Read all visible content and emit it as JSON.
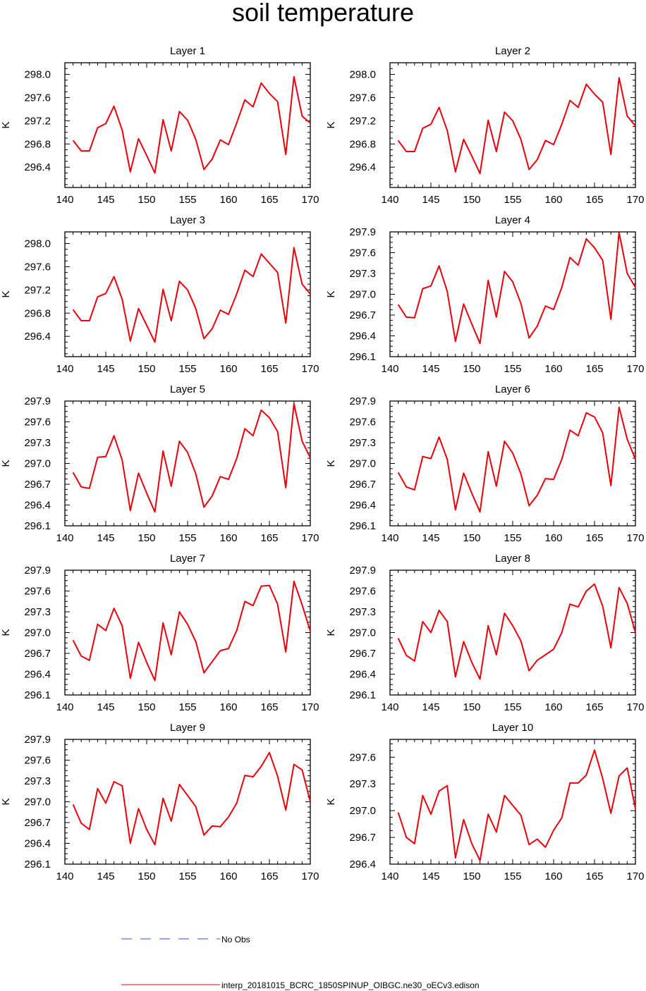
{
  "title": "soil temperature",
  "legend": {
    "obs_label": "No Obs",
    "model_label": "interp_20181015_BCRC_1850SPINUP_OIBGC.ne30_oECv3.edison",
    "obs_color": "#3050e8",
    "model_color": "#e8000b"
  },
  "chart_data": [
    {
      "type": "line",
      "title": "Layer 1",
      "ylabel": "K",
      "xlim": [
        140,
        170
      ],
      "ylim": [
        296.05,
        298.2
      ],
      "xticks": [
        140,
        145,
        150,
        155,
        160,
        165,
        170
      ],
      "yticks": [
        296.4,
        296.8,
        297.2,
        297.6,
        298.0
      ],
      "ytick_labels": [
        "296.4",
        "296.8",
        "297.2",
        "297.6",
        "298.0"
      ],
      "x": [
        141,
        142,
        143,
        144,
        145,
        146,
        147,
        148,
        149,
        150,
        151,
        152,
        153,
        154,
        155,
        156,
        157,
        158,
        159,
        160,
        161,
        162,
        163,
        164,
        165,
        166,
        167,
        168,
        169,
        170
      ],
      "values": [
        296.86,
        296.68,
        296.68,
        297.08,
        297.15,
        297.45,
        297.04,
        296.32,
        296.89,
        296.6,
        296.3,
        297.22,
        296.68,
        297.36,
        297.21,
        296.88,
        296.36,
        296.54,
        296.87,
        296.79,
        297.16,
        297.56,
        297.44,
        297.85,
        297.67,
        297.53,
        296.62,
        297.96,
        297.28,
        297.16
      ]
    },
    {
      "type": "line",
      "title": "Layer 2",
      "ylabel": "K",
      "xlim": [
        140,
        170
      ],
      "ylim": [
        296.05,
        298.2
      ],
      "xticks": [
        140,
        145,
        150,
        155,
        160,
        165,
        170
      ],
      "yticks": [
        296.4,
        296.8,
        297.2,
        297.6,
        298.0
      ],
      "ytick_labels": [
        "296.4",
        "296.8",
        "297.2",
        "297.6",
        "298.0"
      ],
      "x": [
        141,
        142,
        143,
        144,
        145,
        146,
        147,
        148,
        149,
        150,
        151,
        152,
        153,
        154,
        155,
        156,
        157,
        158,
        159,
        160,
        161,
        162,
        163,
        164,
        165,
        166,
        167,
        168,
        169,
        170
      ],
      "values": [
        296.86,
        296.67,
        296.67,
        297.07,
        297.14,
        297.43,
        297.03,
        296.32,
        296.88,
        296.59,
        296.29,
        297.21,
        296.67,
        297.35,
        297.2,
        296.88,
        296.36,
        296.53,
        296.86,
        296.79,
        297.14,
        297.55,
        297.43,
        297.83,
        297.66,
        297.52,
        296.62,
        297.94,
        297.28,
        297.11
      ]
    },
    {
      "type": "line",
      "title": "Layer 3",
      "ylabel": "K",
      "xlim": [
        140,
        170
      ],
      "ylim": [
        296.05,
        298.2
      ],
      "xticks": [
        140,
        145,
        150,
        155,
        160,
        165,
        170
      ],
      "yticks": [
        296.4,
        296.8,
        297.2,
        297.6,
        298.0
      ],
      "ytick_labels": [
        "296.4",
        "296.8",
        "297.2",
        "297.6",
        "298.0"
      ],
      "x": [
        141,
        142,
        143,
        144,
        145,
        146,
        147,
        148,
        149,
        150,
        151,
        152,
        153,
        154,
        155,
        156,
        157,
        158,
        159,
        160,
        161,
        162,
        163,
        164,
        165,
        166,
        167,
        168,
        169,
        170
      ],
      "values": [
        296.86,
        296.67,
        296.67,
        297.08,
        297.14,
        297.43,
        297.04,
        296.32,
        296.88,
        296.59,
        296.3,
        297.21,
        296.67,
        297.35,
        297.2,
        296.88,
        296.36,
        296.53,
        296.85,
        296.78,
        297.13,
        297.54,
        297.43,
        297.82,
        297.66,
        297.5,
        296.63,
        297.93,
        297.3,
        297.13
      ]
    },
    {
      "type": "line",
      "title": "Layer 4",
      "ylabel": "K",
      "xlim": [
        140,
        170
      ],
      "ylim": [
        296.1,
        297.9
      ],
      "xticks": [
        140,
        145,
        150,
        155,
        160,
        165,
        170
      ],
      "yticks": [
        296.1,
        296.4,
        296.7,
        297.0,
        297.3,
        297.6,
        297.9
      ],
      "ytick_labels": [
        "296.1",
        "296.4",
        "296.7",
        "297.0",
        "297.3",
        "297.6",
        "297.9"
      ],
      "x": [
        141,
        142,
        143,
        144,
        145,
        146,
        147,
        148,
        149,
        150,
        151,
        152,
        153,
        154,
        155,
        156,
        157,
        158,
        159,
        160,
        161,
        162,
        163,
        164,
        165,
        166,
        167,
        168,
        169,
        170
      ],
      "values": [
        296.85,
        296.67,
        296.66,
        297.08,
        297.12,
        297.41,
        297.04,
        296.32,
        296.86,
        296.57,
        296.29,
        297.2,
        296.67,
        297.33,
        297.18,
        296.87,
        296.37,
        296.54,
        296.83,
        296.78,
        297.1,
        297.53,
        297.42,
        297.8,
        297.67,
        297.49,
        296.64,
        297.89,
        297.3,
        297.1
      ]
    },
    {
      "type": "line",
      "title": "Layer 5",
      "ylabel": "K",
      "xlim": [
        140,
        170
      ],
      "ylim": [
        296.1,
        297.9
      ],
      "xticks": [
        140,
        145,
        150,
        155,
        160,
        165,
        170
      ],
      "yticks": [
        296.1,
        296.4,
        296.7,
        297.0,
        297.3,
        297.6,
        297.9
      ],
      "ytick_labels": [
        "296.1",
        "296.4",
        "296.7",
        "297.0",
        "297.3",
        "297.6",
        "297.9"
      ],
      "x": [
        141,
        142,
        143,
        144,
        145,
        146,
        147,
        148,
        149,
        150,
        151,
        152,
        153,
        154,
        155,
        156,
        157,
        158,
        159,
        160,
        161,
        162,
        163,
        164,
        165,
        166,
        167,
        168,
        169,
        170
      ],
      "values": [
        296.87,
        296.66,
        296.64,
        297.09,
        297.1,
        297.4,
        297.05,
        296.32,
        296.86,
        296.57,
        296.3,
        297.18,
        296.67,
        297.32,
        297.16,
        296.85,
        296.37,
        296.53,
        296.81,
        296.77,
        297.07,
        297.5,
        297.4,
        297.77,
        297.66,
        297.46,
        296.65,
        297.86,
        297.32,
        297.08
      ]
    },
    {
      "type": "line",
      "title": "Layer 6",
      "ylabel": "K",
      "xlim": [
        140,
        170
      ],
      "ylim": [
        296.1,
        297.9
      ],
      "xticks": [
        140,
        145,
        150,
        155,
        160,
        165,
        170
      ],
      "yticks": [
        296.1,
        296.4,
        296.7,
        297.0,
        297.3,
        297.6,
        297.9
      ],
      "ytick_labels": [
        "296.1",
        "296.4",
        "296.7",
        "297.0",
        "297.3",
        "297.6",
        "297.9"
      ],
      "x": [
        141,
        142,
        143,
        144,
        145,
        146,
        147,
        148,
        149,
        150,
        151,
        152,
        153,
        154,
        155,
        156,
        157,
        158,
        159,
        160,
        161,
        162,
        163,
        164,
        165,
        166,
        167,
        168,
        169,
        170
      ],
      "values": [
        296.87,
        296.66,
        296.62,
        297.1,
        297.07,
        297.38,
        297.06,
        296.33,
        296.86,
        296.57,
        296.3,
        297.17,
        296.67,
        297.32,
        297.15,
        296.85,
        296.39,
        296.54,
        296.78,
        296.77,
        297.06,
        297.48,
        297.4,
        297.73,
        297.67,
        297.44,
        296.68,
        297.81,
        297.35,
        297.06
      ]
    },
    {
      "type": "line",
      "title": "Layer 7",
      "ylabel": "K",
      "xlim": [
        140,
        170
      ],
      "ylim": [
        296.1,
        297.9
      ],
      "xticks": [
        140,
        145,
        150,
        155,
        160,
        165,
        170
      ],
      "yticks": [
        296.1,
        296.4,
        296.7,
        297.0,
        297.3,
        297.6,
        297.9
      ],
      "ytick_labels": [
        "296.1",
        "296.4",
        "296.7",
        "297.0",
        "297.3",
        "297.6",
        "297.9"
      ],
      "x": [
        141,
        142,
        143,
        144,
        145,
        146,
        147,
        148,
        149,
        150,
        151,
        152,
        153,
        154,
        155,
        156,
        157,
        158,
        159,
        160,
        161,
        162,
        163,
        164,
        165,
        166,
        167,
        168,
        169,
        170
      ],
      "values": [
        296.89,
        296.66,
        296.6,
        297.12,
        297.03,
        297.35,
        297.1,
        296.34,
        296.86,
        296.57,
        296.31,
        297.14,
        296.68,
        297.3,
        297.12,
        296.87,
        296.42,
        296.58,
        296.74,
        296.77,
        297.03,
        297.45,
        297.39,
        297.67,
        297.68,
        297.41,
        296.72,
        297.74,
        297.4,
        297.02
      ]
    },
    {
      "type": "line",
      "title": "Layer 8",
      "ylabel": "K",
      "xlim": [
        140,
        170
      ],
      "ylim": [
        296.1,
        297.9
      ],
      "xticks": [
        140,
        145,
        150,
        155,
        160,
        165,
        170
      ],
      "yticks": [
        296.1,
        296.4,
        296.7,
        297.0,
        297.3,
        297.6,
        297.9
      ],
      "ytick_labels": [
        "296.1",
        "296.4",
        "296.7",
        "297.0",
        "297.3",
        "297.6",
        "297.9"
      ],
      "x": [
        141,
        142,
        143,
        144,
        145,
        146,
        147,
        148,
        149,
        150,
        151,
        152,
        153,
        154,
        155,
        156,
        157,
        158,
        159,
        160,
        161,
        162,
        163,
        164,
        165,
        166,
        167,
        168,
        169,
        170
      ],
      "values": [
        296.92,
        296.67,
        296.59,
        297.16,
        297.0,
        297.32,
        297.16,
        296.36,
        296.87,
        296.57,
        296.33,
        297.1,
        296.68,
        297.28,
        297.1,
        296.88,
        296.45,
        296.6,
        296.68,
        296.76,
        297.0,
        297.41,
        297.37,
        297.6,
        297.7,
        297.38,
        296.78,
        297.65,
        297.42,
        297.0
      ]
    },
    {
      "type": "line",
      "title": "Layer 9",
      "ylabel": "K",
      "xlim": [
        140,
        170
      ],
      "ylim": [
        296.1,
        297.9
      ],
      "xticks": [
        140,
        145,
        150,
        155,
        160,
        165,
        170
      ],
      "yticks": [
        296.1,
        296.4,
        296.7,
        297.0,
        297.3,
        297.6,
        297.9
      ],
      "ytick_labels": [
        "296.1",
        "296.4",
        "296.7",
        "297.0",
        "297.3",
        "297.6",
        "297.9"
      ],
      "x": [
        141,
        142,
        143,
        144,
        145,
        146,
        147,
        148,
        149,
        150,
        151,
        152,
        153,
        154,
        155,
        156,
        157,
        158,
        159,
        160,
        161,
        162,
        163,
        164,
        165,
        166,
        167,
        168,
        169,
        170
      ],
      "values": [
        296.96,
        296.69,
        296.6,
        297.19,
        296.98,
        297.29,
        297.23,
        296.4,
        296.9,
        296.6,
        296.38,
        297.05,
        296.72,
        297.25,
        297.09,
        296.93,
        296.52,
        296.65,
        296.64,
        296.78,
        296.98,
        297.38,
        297.36,
        297.51,
        297.71,
        297.37,
        296.88,
        297.54,
        297.46,
        297.0
      ]
    },
    {
      "type": "line",
      "title": "Layer 10",
      "ylabel": "K",
      "xlim": [
        140,
        170
      ],
      "ylim": [
        296.4,
        297.8
      ],
      "xticks": [
        140,
        145,
        150,
        155,
        160,
        165,
        170
      ],
      "yticks": [
        296.4,
        296.7,
        297.0,
        297.3,
        297.6
      ],
      "ytick_labels": [
        "296.4",
        "296.7",
        "297.0",
        "297.3",
        "297.6"
      ],
      "x": [
        141,
        142,
        143,
        144,
        145,
        146,
        147,
        148,
        149,
        150,
        151,
        152,
        153,
        154,
        155,
        156,
        157,
        158,
        159,
        160,
        161,
        162,
        163,
        164,
        165,
        166,
        167,
        168,
        169,
        170
      ],
      "values": [
        296.98,
        296.7,
        296.63,
        297.17,
        296.96,
        297.22,
        297.28,
        296.47,
        296.9,
        296.63,
        296.44,
        296.96,
        296.76,
        297.17,
        297.06,
        296.95,
        296.62,
        296.68,
        296.59,
        296.78,
        296.92,
        297.31,
        297.31,
        297.4,
        297.68,
        297.36,
        296.97,
        297.39,
        297.48,
        297.02
      ]
    }
  ]
}
